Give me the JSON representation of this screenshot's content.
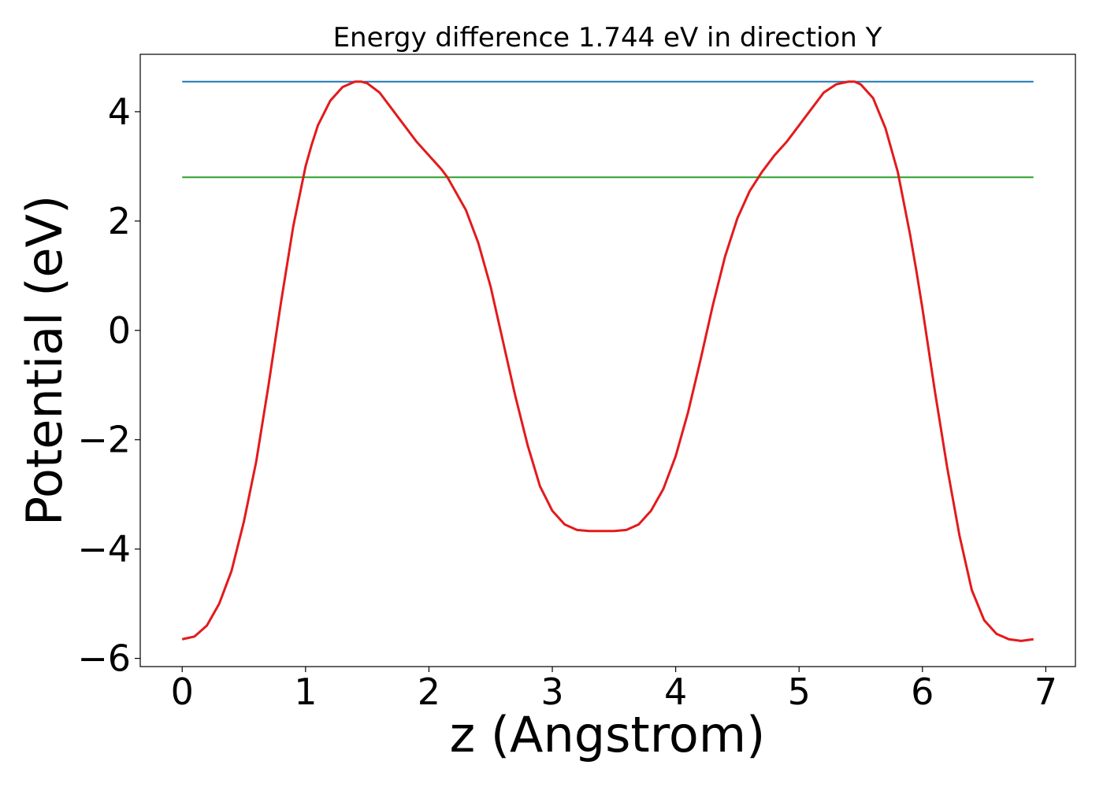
{
  "chart_data": {
    "type": "line",
    "title": "Energy difference 1.744 eV in direction Y",
    "xlabel": "z (Angstrom)",
    "ylabel": "Potential (eV)",
    "xlim": [
      -0.34,
      7.24
    ],
    "ylim": [
      -6.15,
      5.05
    ],
    "xticks": [
      0,
      1,
      2,
      3,
      4,
      5,
      6,
      7
    ],
    "xtick_labels": [
      "0",
      "1",
      "2",
      "3",
      "4",
      "5",
      "6",
      "7"
    ],
    "yticks": [
      -6,
      -4,
      -2,
      0,
      2,
      4
    ],
    "ytick_labels": [
      "−6",
      "−4",
      "−2",
      "0",
      "2",
      "4"
    ],
    "grid": false,
    "legend": "none",
    "series": [
      {
        "color": "#e31a1c",
        "role": "potential",
        "x": [
          0,
          0.1,
          0.2,
          0.3,
          0.4,
          0.5,
          0.6,
          0.7,
          0.8,
          0.9,
          1.0,
          1.05,
          1.1,
          1.2,
          1.3,
          1.4,
          1.45,
          1.5,
          1.6,
          1.7,
          1.8,
          1.9,
          2.0,
          2.1,
          2.15,
          2.2,
          2.3,
          2.4,
          2.5,
          2.6,
          2.7,
          2.8,
          2.9,
          3.0,
          3.1,
          3.2,
          3.3,
          3.4,
          3.5,
          3.6,
          3.7,
          3.8,
          3.9,
          4.0,
          4.1,
          4.2,
          4.3,
          4.4,
          4.5,
          4.6,
          4.7,
          4.75,
          4.8,
          4.9,
          5.0,
          5.1,
          5.2,
          5.3,
          5.4,
          5.45,
          5.5,
          5.6,
          5.7,
          5.8,
          5.9,
          5.95,
          6.0,
          6.1,
          6.2,
          6.3,
          6.4,
          6.5,
          6.6,
          6.7,
          6.8,
          6.9
        ],
        "y": [
          -5.65,
          -5.6,
          -5.4,
          -5.0,
          -4.4,
          -3.5,
          -2.4,
          -1.0,
          0.5,
          1.9,
          3.0,
          3.4,
          3.75,
          4.2,
          4.45,
          4.55,
          4.55,
          4.52,
          4.35,
          4.05,
          3.75,
          3.45,
          3.2,
          2.95,
          2.8,
          2.6,
          2.2,
          1.6,
          0.8,
          -0.2,
          -1.2,
          -2.1,
          -2.85,
          -3.3,
          -3.55,
          -3.65,
          -3.67,
          -3.67,
          -3.67,
          -3.65,
          -3.55,
          -3.3,
          -2.9,
          -2.3,
          -1.5,
          -0.55,
          0.45,
          1.35,
          2.05,
          2.55,
          2.9,
          3.05,
          3.2,
          3.45,
          3.75,
          4.05,
          4.35,
          4.5,
          4.55,
          4.55,
          4.5,
          4.25,
          3.7,
          2.9,
          1.75,
          1.1,
          0.4,
          -1.1,
          -2.5,
          -3.75,
          -4.75,
          -5.3,
          -5.55,
          -5.65,
          -5.68,
          -5.65
        ]
      },
      {
        "color": "#1f77b4",
        "role": "reference-max",
        "x": [
          0,
          6.9
        ],
        "y": [
          4.55,
          4.55
        ]
      },
      {
        "color": "#2ca02c",
        "role": "reference-mean",
        "x": [
          0,
          6.9
        ],
        "y": [
          2.8,
          2.8
        ]
      }
    ]
  }
}
